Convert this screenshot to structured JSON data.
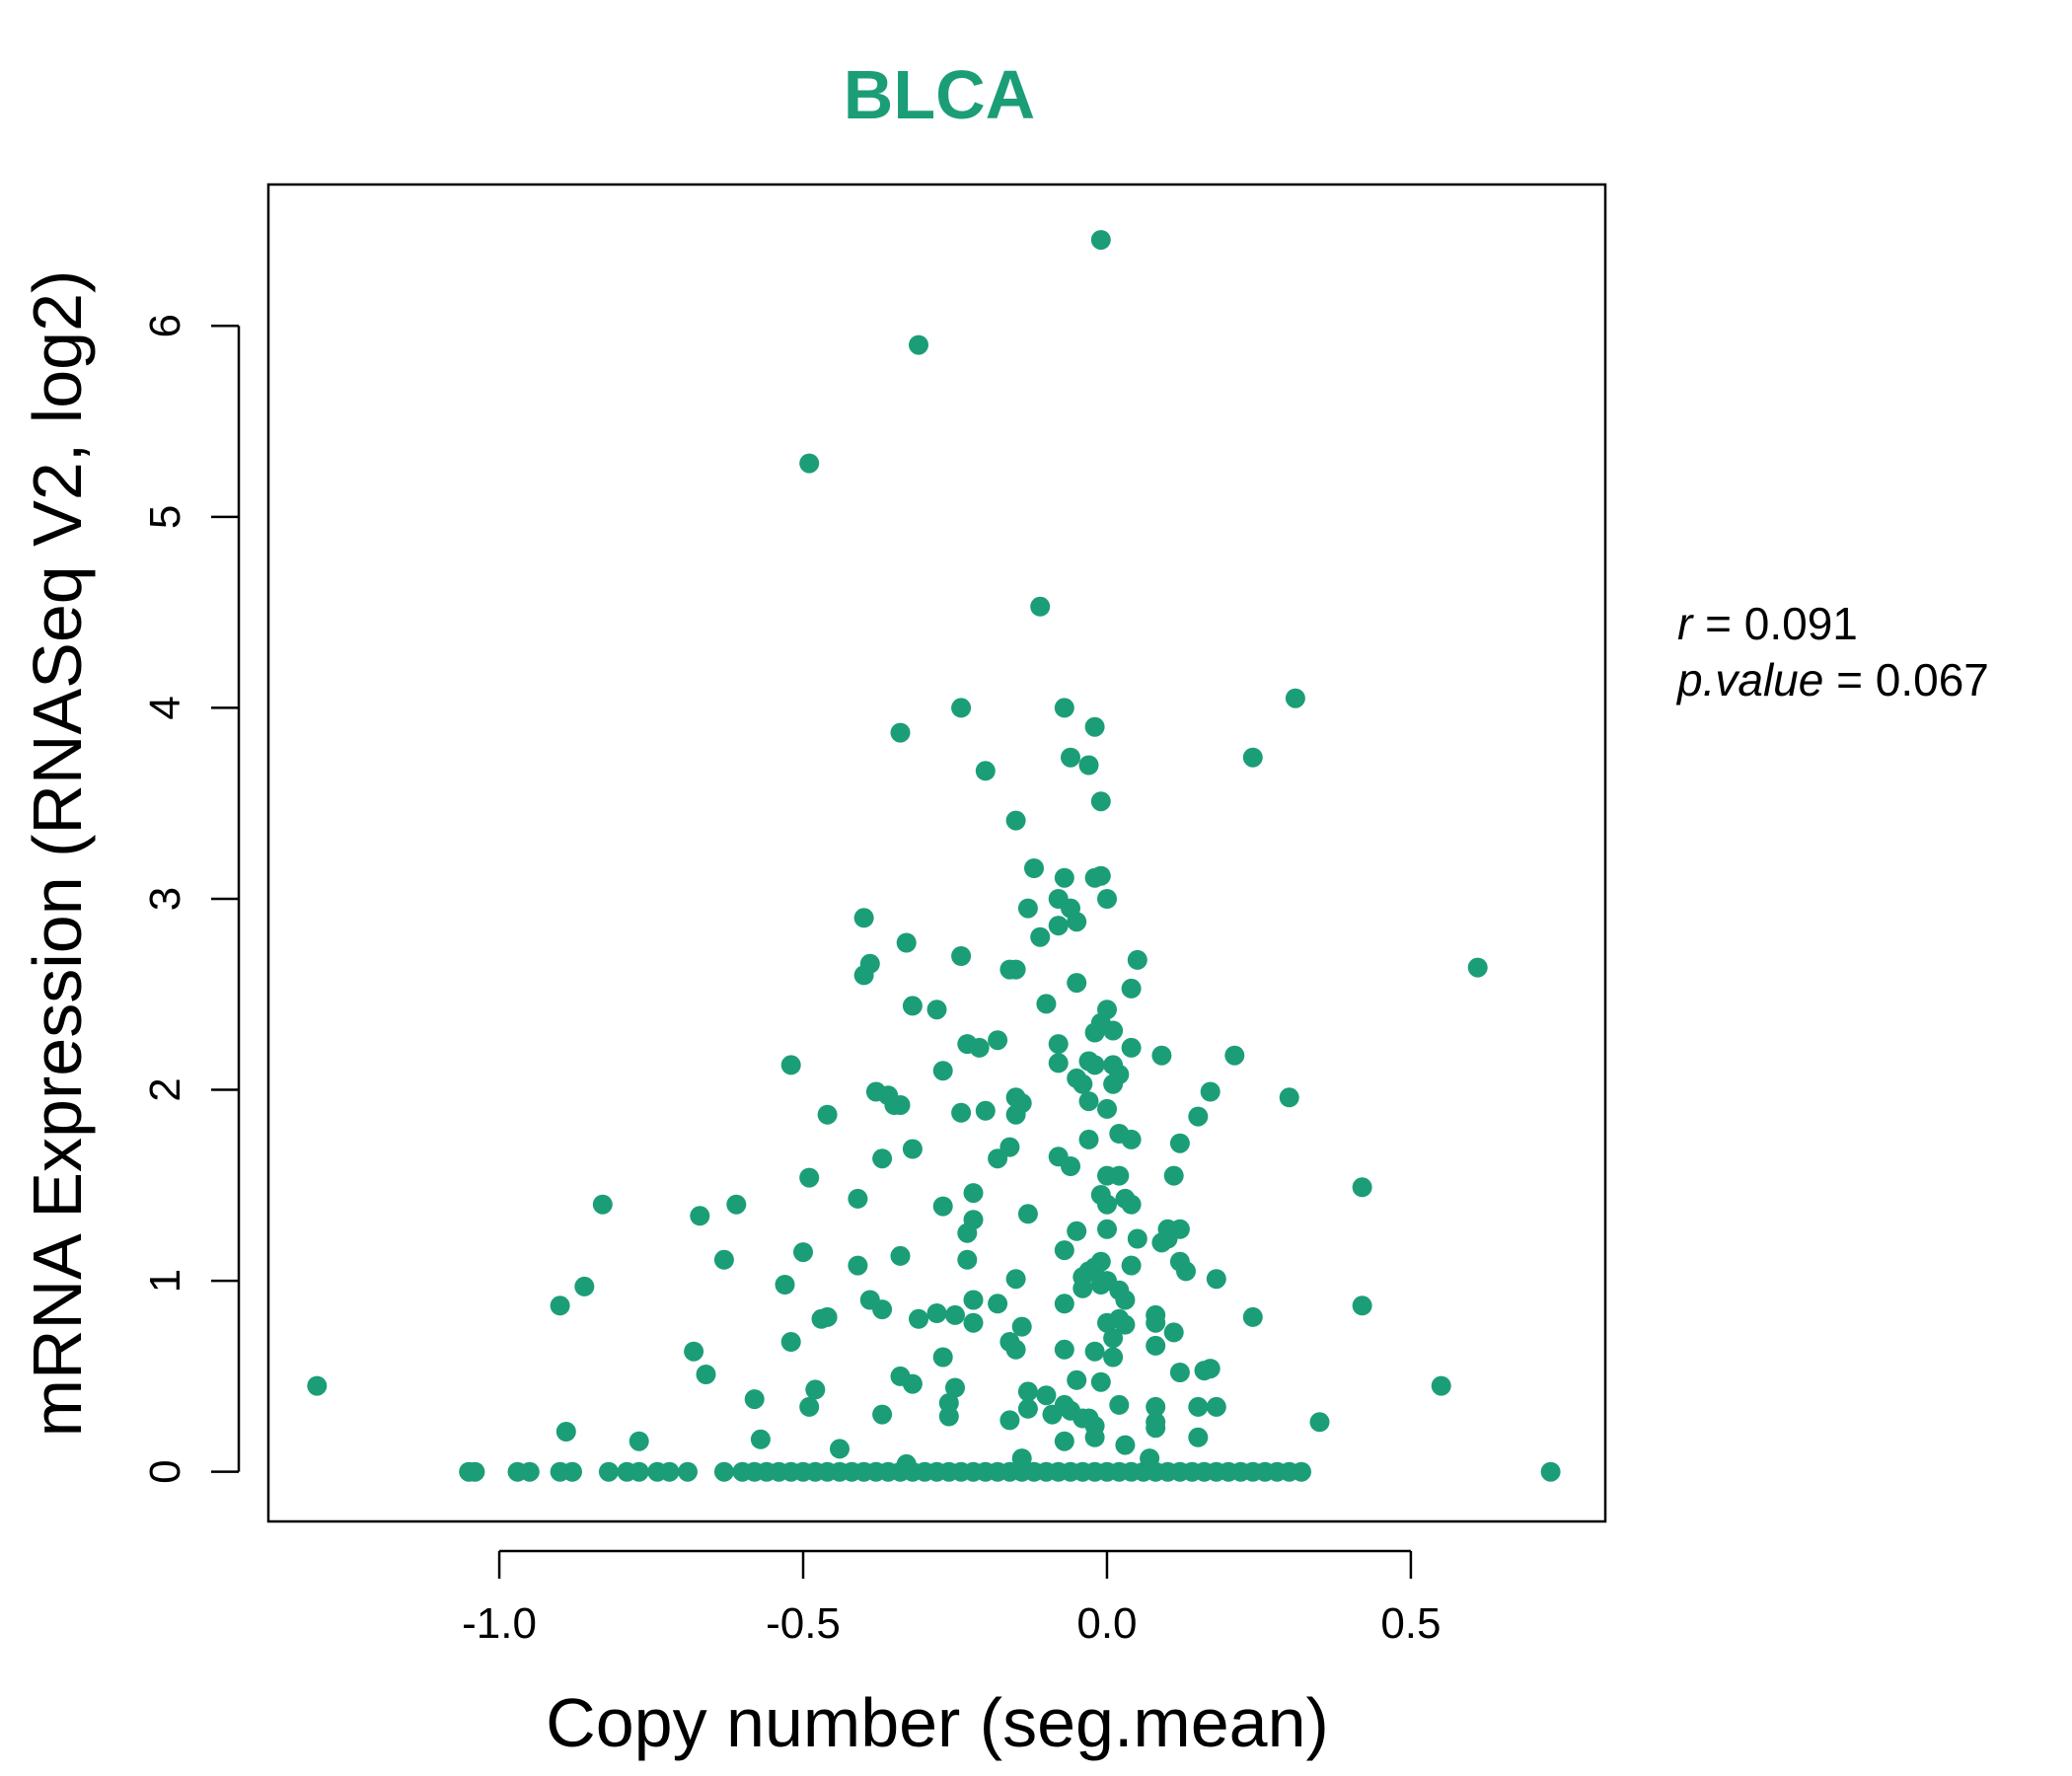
{
  "colors": {
    "point": "#1B9E77",
    "title": "#1B9E77",
    "axis": "#000000"
  },
  "chart_data": {
    "type": "scatter",
    "title": "BLCA",
    "xlabel": "Copy number (seg.mean)",
    "ylabel": "mRNA Expression (RNASeq V2, log2)",
    "xlim": [
      -1.38,
      0.82
    ],
    "ylim": [
      -0.26,
      6.74
    ],
    "xticks": [
      -1.0,
      -0.5,
      0.0,
      0.5
    ],
    "xtick_labels": [
      "-1.0",
      "-0.5",
      "0.0",
      "0.5"
    ],
    "yticks": [
      0,
      1,
      2,
      3,
      4,
      5,
      6
    ],
    "ytick_labels": [
      "0",
      "1",
      "2",
      "3",
      "4",
      "5",
      "6"
    ],
    "grid": false,
    "stats": {
      "r_label": "r",
      "r_value": "0.091",
      "p_label": "p.value",
      "p_value": "0.067"
    },
    "points": [
      [
        -0.01,
        6.45
      ],
      [
        -0.31,
        5.9
      ],
      [
        -0.49,
        5.28
      ],
      [
        -0.11,
        4.53
      ],
      [
        0.31,
        4.05
      ],
      [
        -0.24,
        4.0
      ],
      [
        -0.07,
        4.0
      ],
      [
        -0.02,
        3.9
      ],
      [
        -0.34,
        3.87
      ],
      [
        0.24,
        3.74
      ],
      [
        -0.06,
        3.74
      ],
      [
        -0.03,
        3.7
      ],
      [
        -0.2,
        3.67
      ],
      [
        -0.01,
        3.51
      ],
      [
        -0.15,
        3.41
      ],
      [
        -0.12,
        3.16
      ],
      [
        -0.07,
        3.11
      ],
      [
        -0.02,
        3.11
      ],
      [
        -0.01,
        3.12
      ],
      [
        -0.08,
        3.0
      ],
      [
        0.0,
        3.0
      ],
      [
        -0.13,
        2.95
      ],
      [
        -0.06,
        2.95
      ],
      [
        -0.08,
        2.86
      ],
      [
        -0.05,
        2.88
      ],
      [
        -0.4,
        2.9
      ],
      [
        -0.11,
        2.8
      ],
      [
        -0.33,
        2.77
      ],
      [
        -0.24,
        2.7
      ],
      [
        0.05,
        2.68
      ],
      [
        0.61,
        2.64
      ],
      [
        -0.39,
        2.66
      ],
      [
        -0.4,
        2.6
      ],
      [
        -0.16,
        2.63
      ],
      [
        -0.15,
        2.63
      ],
      [
        -0.05,
        2.56
      ],
      [
        0.04,
        2.53
      ],
      [
        -0.32,
        2.44
      ],
      [
        -0.28,
        2.42
      ],
      [
        -0.1,
        2.45
      ],
      [
        0.0,
        2.42
      ],
      [
        -0.01,
        2.35
      ],
      [
        -0.02,
        2.3
      ],
      [
        0.01,
        2.31
      ],
      [
        -0.08,
        2.24
      ],
      [
        -0.23,
        2.24
      ],
      [
        -0.21,
        2.22
      ],
      [
        -0.18,
        2.26
      ],
      [
        0.04,
        2.22
      ],
      [
        0.21,
        2.18
      ],
      [
        0.09,
        2.18
      ],
      [
        -0.03,
        2.15
      ],
      [
        -0.02,
        2.13
      ],
      [
        0.01,
        2.13
      ],
      [
        -0.08,
        2.14
      ],
      [
        -0.52,
        2.13
      ],
      [
        -0.27,
        2.1
      ],
      [
        0.02,
        2.08
      ],
      [
        -0.05,
        2.06
      ],
      [
        -0.04,
        2.03
      ],
      [
        0.01,
        2.03
      ],
      [
        -0.38,
        1.99
      ],
      [
        -0.36,
        1.97
      ],
      [
        -0.35,
        1.92
      ],
      [
        -0.34,
        1.92
      ],
      [
        -0.15,
        1.96
      ],
      [
        -0.14,
        1.93
      ],
      [
        -0.2,
        1.89
      ],
      [
        -0.24,
        1.88
      ],
      [
        -0.15,
        1.87
      ],
      [
        0.17,
        1.99
      ],
      [
        0.3,
        1.96
      ],
      [
        -0.03,
        1.94
      ],
      [
        0.0,
        1.9
      ],
      [
        -0.46,
        1.87
      ],
      [
        0.15,
        1.86
      ],
      [
        0.02,
        1.77
      ],
      [
        -0.03,
        1.74
      ],
      [
        0.04,
        1.74
      ],
      [
        0.12,
        1.72
      ],
      [
        -0.32,
        1.69
      ],
      [
        -0.16,
        1.7
      ],
      [
        -0.37,
        1.64
      ],
      [
        -0.18,
        1.64
      ],
      [
        -0.08,
        1.65
      ],
      [
        -0.06,
        1.6
      ],
      [
        0.0,
        1.55
      ],
      [
        0.02,
        1.55
      ],
      [
        0.11,
        1.55
      ],
      [
        -0.49,
        1.54
      ],
      [
        0.42,
        1.49
      ],
      [
        -0.22,
        1.46
      ],
      [
        -0.01,
        1.45
      ],
      [
        0.03,
        1.43
      ],
      [
        -0.41,
        1.43
      ],
      [
        -0.83,
        1.4
      ],
      [
        -0.61,
        1.4
      ],
      [
        0.0,
        1.4
      ],
      [
        0.04,
        1.4
      ],
      [
        -0.27,
        1.39
      ],
      [
        -0.13,
        1.35
      ],
      [
        -0.67,
        1.34
      ],
      [
        -0.22,
        1.32
      ],
      [
        0.12,
        1.27
      ],
      [
        0.1,
        1.27
      ],
      [
        0.0,
        1.27
      ],
      [
        -0.05,
        1.26
      ],
      [
        -0.23,
        1.25
      ],
      [
        0.05,
        1.22
      ],
      [
        0.09,
        1.2
      ],
      [
        0.1,
        1.22
      ],
      [
        -0.07,
        1.16
      ],
      [
        -0.5,
        1.15
      ],
      [
        -0.34,
        1.13
      ],
      [
        -0.63,
        1.11
      ],
      [
        -0.23,
        1.11
      ],
      [
        -0.01,
        1.1
      ],
      [
        0.12,
        1.1
      ],
      [
        0.04,
        1.08
      ],
      [
        -0.41,
        1.08
      ],
      [
        -0.02,
        1.07
      ],
      [
        0.13,
        1.05
      ],
      [
        -0.03,
        1.05
      ],
      [
        -0.04,
        1.02
      ],
      [
        0.0,
        1.0
      ],
      [
        -0.15,
        1.01
      ],
      [
        0.18,
        1.01
      ],
      [
        -0.01,
        0.98
      ],
      [
        -0.53,
        0.98
      ],
      [
        -0.86,
        0.97
      ],
      [
        -0.04,
        0.96
      ],
      [
        0.02,
        0.95
      ],
      [
        0.03,
        0.9
      ],
      [
        -0.22,
        0.9
      ],
      [
        -0.39,
        0.9
      ],
      [
        -0.07,
        0.88
      ],
      [
        -0.9,
        0.87
      ],
      [
        0.42,
        0.87
      ],
      [
        -0.18,
        0.88
      ],
      [
        -0.37,
        0.85
      ],
      [
        -0.28,
        0.83
      ],
      [
        0.08,
        0.82
      ],
      [
        -0.25,
        0.82
      ],
      [
        -0.47,
        0.8
      ],
      [
        -0.46,
        0.81
      ],
      [
        -0.31,
        0.8
      ],
      [
        0.02,
        0.8
      ],
      [
        0.24,
        0.81
      ],
      [
        0.0,
        0.78
      ],
      [
        0.08,
        0.78
      ],
      [
        0.03,
        0.77
      ],
      [
        -0.22,
        0.78
      ],
      [
        -0.14,
        0.76
      ],
      [
        0.11,
        0.73
      ],
      [
        0.01,
        0.7
      ],
      [
        -0.52,
        0.68
      ],
      [
        -0.16,
        0.68
      ],
      [
        -0.15,
        0.64
      ],
      [
        0.08,
        0.66
      ],
      [
        -0.07,
        0.64
      ],
      [
        -0.02,
        0.63
      ],
      [
        0.01,
        0.6
      ],
      [
        -0.68,
        0.63
      ],
      [
        -0.27,
        0.6
      ],
      [
        -0.66,
        0.51
      ],
      [
        0.12,
        0.52
      ],
      [
        0.16,
        0.53
      ],
      [
        0.17,
        0.54
      ],
      [
        -0.34,
        0.5
      ],
      [
        -0.05,
        0.48
      ],
      [
        -0.01,
        0.47
      ],
      [
        -1.3,
        0.45
      ],
      [
        0.55,
        0.45
      ],
      [
        -0.32,
        0.46
      ],
      [
        -0.25,
        0.44
      ],
      [
        -0.48,
        0.43
      ],
      [
        -0.13,
        0.42
      ],
      [
        -0.1,
        0.4
      ],
      [
        -0.58,
        0.38
      ],
      [
        -0.07,
        0.35
      ],
      [
        -0.26,
        0.36
      ],
      [
        -0.49,
        0.34
      ],
      [
        0.02,
        0.35
      ],
      [
        0.08,
        0.34
      ],
      [
        0.15,
        0.34
      ],
      [
        0.18,
        0.34
      ],
      [
        -0.13,
        0.33
      ],
      [
        -0.06,
        0.32
      ],
      [
        -0.37,
        0.3
      ],
      [
        -0.26,
        0.29
      ],
      [
        -0.09,
        0.3
      ],
      [
        -0.04,
        0.28
      ],
      [
        -0.03,
        0.28
      ],
      [
        -0.16,
        0.27
      ],
      [
        0.08,
        0.26
      ],
      [
        0.35,
        0.26
      ],
      [
        -0.02,
        0.24
      ],
      [
        0.08,
        0.23
      ],
      [
        -0.89,
        0.21
      ],
      [
        -0.02,
        0.18
      ],
      [
        -0.57,
        0.17
      ],
      [
        -0.77,
        0.16
      ],
      [
        -0.07,
        0.16
      ],
      [
        0.15,
        0.18
      ],
      [
        0.03,
        0.14
      ],
      [
        -0.44,
        0.12
      ],
      [
        -0.14,
        0.07
      ],
      [
        0.07,
        0.07
      ],
      [
        -0.33,
        0.04
      ],
      [
        -1.05,
        0.0
      ],
      [
        -1.04,
        0.0
      ],
      [
        -0.97,
        0.0
      ],
      [
        -0.95,
        0.0
      ],
      [
        -0.9,
        0.0
      ],
      [
        -0.88,
        0.0
      ],
      [
        -0.82,
        0.0
      ],
      [
        -0.79,
        0.0
      ],
      [
        -0.77,
        0.0
      ],
      [
        -0.74,
        0.0
      ],
      [
        -0.72,
        0.0
      ],
      [
        -0.69,
        0.0
      ],
      [
        -0.63,
        0.0
      ],
      [
        -0.6,
        0.0
      ],
      [
        -0.58,
        0.0
      ],
      [
        -0.56,
        0.0
      ],
      [
        -0.54,
        0.0
      ],
      [
        -0.52,
        0.0
      ],
      [
        -0.5,
        0.0
      ],
      [
        -0.48,
        0.0
      ],
      [
        -0.46,
        0.0
      ],
      [
        -0.44,
        0.0
      ],
      [
        -0.42,
        0.0
      ],
      [
        -0.4,
        0.0
      ],
      [
        -0.38,
        0.0
      ],
      [
        -0.36,
        0.0
      ],
      [
        -0.34,
        0.0
      ],
      [
        -0.32,
        0.0
      ],
      [
        -0.3,
        0.0
      ],
      [
        -0.28,
        0.0
      ],
      [
        -0.26,
        0.0
      ],
      [
        -0.24,
        0.0
      ],
      [
        -0.22,
        0.0
      ],
      [
        -0.2,
        0.0
      ],
      [
        -0.18,
        0.0
      ],
      [
        -0.16,
        0.0
      ],
      [
        -0.14,
        0.0
      ],
      [
        -0.12,
        0.0
      ],
      [
        -0.1,
        0.0
      ],
      [
        -0.08,
        0.0
      ],
      [
        -0.06,
        0.0
      ],
      [
        -0.04,
        0.0
      ],
      [
        -0.02,
        0.0
      ],
      [
        0.0,
        0.0
      ],
      [
        0.02,
        0.0
      ],
      [
        0.04,
        0.0
      ],
      [
        0.06,
        0.0
      ],
      [
        0.08,
        0.0
      ],
      [
        0.1,
        0.0
      ],
      [
        0.12,
        0.0
      ],
      [
        0.14,
        0.0
      ],
      [
        0.16,
        0.0
      ],
      [
        0.18,
        0.0
      ],
      [
        0.2,
        0.0
      ],
      [
        0.22,
        0.0
      ],
      [
        0.24,
        0.0
      ],
      [
        0.26,
        0.0
      ],
      [
        0.28,
        0.0
      ],
      [
        0.3,
        0.0
      ],
      [
        0.32,
        0.0
      ],
      [
        0.73,
        0.0
      ]
    ]
  }
}
